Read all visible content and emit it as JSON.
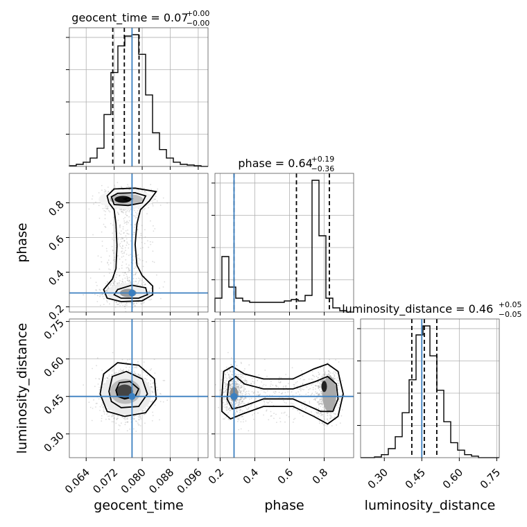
{
  "chart_data": {
    "type": "corner",
    "parameters": [
      "geocent_time",
      "phase",
      "luminosity_distance"
    ],
    "truths": [
      0.0771,
      0.28,
      0.45
    ],
    "truth_color": "#3b7fc0",
    "ranges": [
      [
        0.0592,
        0.0988
      ],
      [
        0.17,
        0.97
      ],
      [
        0.205,
        0.76
      ]
    ],
    "ticks": [
      [
        "0.064",
        "0.072",
        "0.080",
        "0.088",
        "0.096"
      ],
      [
        "0.2",
        "0.4",
        "0.6",
        "0.8"
      ],
      [
        "0.30",
        "0.45",
        "0.60",
        "0.75"
      ]
    ],
    "phase_y_ticks": [
      "0.2",
      "0.4",
      "0.6",
      "0.8"
    ],
    "distance_y_ticks": [
      "0.30",
      "0.45",
      "0.60",
      "0.75"
    ],
    "titles": [
      {
        "text": "geocent_time = 0.07",
        "upper": "+0.00",
        "lower": "−0.00"
      },
      {
        "text": "phase = 0.64",
        "upper": "+0.19",
        "lower": "−0.36"
      },
      {
        "text": "luminosity_distance = 0.46",
        "upper": "+0.05",
        "lower": "−0.05"
      }
    ],
    "quantiles": [
      [
        0.0716,
        0.0749,
        0.0791
      ],
      [
        0.28,
        0.64,
        0.83
      ],
      [
        0.41,
        0.46,
        0.51
      ]
    ],
    "histograms": {
      "geocent_time": {
        "edges_start": 0.0592,
        "bin_width": 0.00198,
        "counts": [
          0.5,
          1.5,
          3,
          6,
          13,
          37,
          67,
          86,
          93,
          94,
          80,
          51,
          24,
          12,
          6,
          3,
          1.5,
          1,
          0.5,
          0
        ]
      },
      "phase": {
        "edges_start": 0.17,
        "bin_width": 0.04,
        "counts": [
          10,
          40,
          18,
          10,
          8,
          7,
          7,
          7,
          7,
          7,
          8,
          9,
          8,
          12,
          95,
          55,
          10,
          3,
          1,
          0
        ]
      },
      "luminosity_distance": {
        "edges_start": 0.205,
        "bin_width": 0.02775,
        "counts": [
          0,
          0,
          0.5,
          2,
          6,
          14,
          30,
          52,
          82,
          88,
          68,
          45,
          24,
          10,
          5,
          2,
          1,
          0,
          0,
          0
        ]
      }
    },
    "grid": true
  }
}
